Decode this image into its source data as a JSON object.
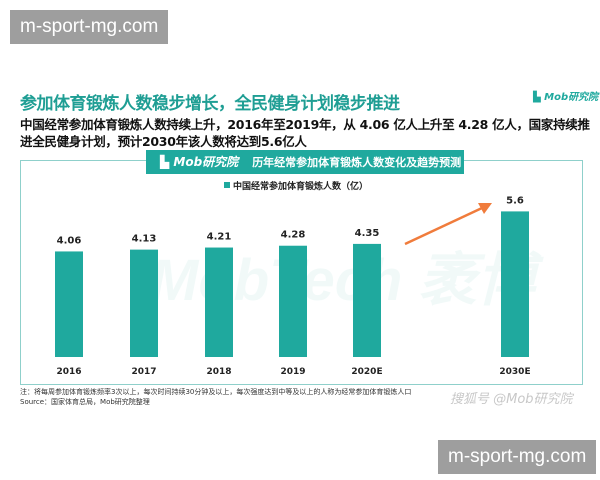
{
  "watermark_top": "m-sport-mg.com",
  "watermark_bottom": "m-sport-mg.com",
  "title": "参加体育锻炼人数稳步增长，全民健身计划稳步推进",
  "logo": "Mob研究院",
  "subtitle": "中国经常参加体育锻炼人数持续上升，2016年至2019年，从 4.06 亿人上升至 4.28 亿人，国家持续推进全民健身计划，预计2030年该人数将达到5.6亿人",
  "chart_header": {
    "logo": "Mob研究院",
    "title": "历年经常参加体育锻炼人数变化及趋势预测"
  },
  "background_watermark": "MobTech 袤博",
  "colors": {
    "bar": "#1fa99e",
    "title": "#1f9e94",
    "arrow": "#f07c3c"
  },
  "chart_data": {
    "type": "bar",
    "categories": [
      "2016",
      "2017",
      "2018",
      "2019",
      "2020E",
      "2030E"
    ],
    "series": [
      {
        "name": "中国经常参加体育锻炼人数（亿）",
        "values": [
          4.06,
          4.13,
          4.21,
          4.28,
          4.35,
          5.6
        ]
      }
    ],
    "value_labels": [
      "4.06",
      "4.13",
      "4.21",
      "4.28",
      "4.35",
      "5.6"
    ],
    "legend": "top-center",
    "grid": false,
    "ylim": [
      0,
      6
    ],
    "annotation": "trend arrow from 2020E to 2030E"
  },
  "note": "注：将每周参加体育锻炼频率3次以上，每次时间持续30分钟及以上，每次强度达到中等及以上的人称为经常参加体育锻炼人口",
  "source": "Source：国家体育总局，Mob研究院整理",
  "credit": "搜狐号 @Mob研究院"
}
